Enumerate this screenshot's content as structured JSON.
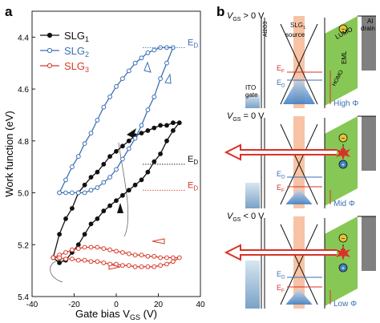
{
  "panel_a": {
    "label": "a",
    "chart_data": {
      "type": "line",
      "xlabel": "Gate bias V",
      "xlabel_sub": "GS",
      "xlabel_unit": "(V)",
      "ylabel": "Work function (eV)",
      "xlim": [
        -40,
        40
      ],
      "ylim": [
        5.4,
        4.3
      ],
      "y_inverted": true,
      "xticks": [
        -40,
        -20,
        0,
        20,
        40
      ],
      "yticks": [
        4.4,
        4.6,
        4.8,
        5.0,
        5.2,
        5.4
      ],
      "xtick_labels": [
        "-40",
        "-20",
        "0",
        "20",
        "40"
      ],
      "ytick_labels": [
        "4.4",
        "4.6",
        "4.8",
        "5.0",
        "5.2",
        "5.4"
      ],
      "grid": false,
      "legend_position": "top-left",
      "series": [
        {
          "name": "SLG",
          "sub": "1",
          "color": "#111111",
          "marker": "filled-circle",
          "x": [
            -30,
            -27,
            -24,
            -21,
            -18,
            -15,
            -12,
            -9,
            -6,
            -3,
            0,
            3,
            6,
            9,
            12,
            15,
            18,
            21,
            24,
            27,
            30,
            27,
            24,
            21,
            18,
            15,
            12,
            9,
            6,
            3,
            0,
            -3,
            -6,
            -9,
            -12,
            -15,
            -18,
            -21,
            -24,
            -27,
            -30
          ],
          "y": [
            5.25,
            5.16,
            5.1,
            5.06,
            5.0,
            4.97,
            4.94,
            4.92,
            4.89,
            4.86,
            4.84,
            4.82,
            4.8,
            4.78,
            4.77,
            4.76,
            4.75,
            4.74,
            4.74,
            4.73,
            4.73,
            4.76,
            4.8,
            4.85,
            4.88,
            4.92,
            4.95,
            4.97,
            4.99,
            5.01,
            5.03,
            5.05,
            5.07,
            5.1,
            5.12,
            5.16,
            5.2,
            5.23,
            5.26,
            5.27,
            5.25
          ]
        },
        {
          "name": "SLG",
          "sub": "2",
          "color": "#3a6fb5",
          "marker": "open-circle",
          "x": [
            -27,
            -24,
            -21,
            -18,
            -15,
            -12,
            -9,
            -6,
            -3,
            0,
            3,
            6,
            9,
            12,
            15,
            18,
            21,
            24,
            27,
            24,
            21,
            18,
            15,
            12,
            9,
            6,
            3,
            0,
            -3,
            -6,
            -9,
            -12,
            -15,
            -18,
            -21,
            -24,
            -27
          ],
          "y": [
            5.0,
            4.95,
            4.9,
            4.86,
            4.81,
            4.77,
            4.72,
            4.67,
            4.63,
            4.59,
            4.56,
            4.53,
            4.5,
            4.48,
            4.46,
            4.45,
            4.44,
            4.44,
            4.44,
            4.5,
            4.56,
            4.63,
            4.68,
            4.74,
            4.79,
            4.83,
            4.87,
            4.91,
            4.94,
            4.96,
            4.98,
            4.99,
            5.0,
            5.0,
            5.0,
            5.0,
            5.0
          ]
        },
        {
          "name": "SLG",
          "sub": "3",
          "color": "#d83a2a",
          "marker": "open-circle",
          "x": [
            -30,
            -27,
            -24,
            -21,
            -18,
            -15,
            -12,
            -9,
            -6,
            -3,
            0,
            3,
            6,
            9,
            12,
            15,
            18,
            21,
            24,
            27,
            30,
            27,
            24,
            21,
            18,
            15,
            12,
            9,
            6,
            3,
            0,
            -3,
            -6,
            -9,
            -12,
            -15,
            -18,
            -21,
            -24,
            -27,
            -30
          ],
          "y": [
            5.25,
            5.24,
            5.23,
            5.22,
            5.215,
            5.21,
            5.21,
            5.21,
            5.215,
            5.22,
            5.225,
            5.23,
            5.235,
            5.24,
            5.24,
            5.245,
            5.245,
            5.25,
            5.25,
            5.25,
            5.25,
            5.265,
            5.275,
            5.28,
            5.285,
            5.285,
            5.285,
            5.285,
            5.28,
            5.28,
            5.275,
            5.275,
            5.27,
            5.265,
            5.265,
            5.26,
            5.26,
            5.255,
            5.255,
            5.25,
            5.25
          ]
        }
      ],
      "annotations": [
        {
          "label": "E",
          "sub": "D",
          "color": "#3a6fb5",
          "y": 4.44
        },
        {
          "label": "E",
          "sub": "D",
          "color": "#111111",
          "y": 4.89
        },
        {
          "label": "E",
          "sub": "D",
          "color": "#d83a2a",
          "y": 4.99
        }
      ]
    }
  },
  "panel_b": {
    "label": "b",
    "layer_labels": {
      "al2o3": "Al2O3",
      "slg1": "SLG1",
      "source": "source",
      "lumo": "LUMO",
      "homo": "HOMO",
      "eml": "EML",
      "al": "Al",
      "drain": "drain",
      "ito": "ITO",
      "gate": "gate"
    },
    "diagrams": [
      {
        "condition": "V",
        "sub": "GS",
        "relation": " > 0 V",
        "phi_label": "High Φ",
        "ef": "E",
        "ef_sub": "F",
        "ed": "E",
        "ed_sub": "D",
        "ef_offset": 0.0,
        "ed_offset": 1.0
      },
      {
        "condition": "V",
        "sub": "GS",
        "relation": " = 0 V",
        "phi_label": "Mid Φ",
        "ef": "E",
        "ef_sub": "F",
        "ed": "E",
        "ed_sub": "D",
        "ef_offset": 1.0,
        "ed_offset": 0.0
      },
      {
        "condition": "V",
        "sub": "GS",
        "relation": " < 0 V",
        "phi_label": "Low Φ",
        "ef": "E",
        "ef_sub": "F",
        "ed": "E",
        "ed_sub": "D",
        "ef_offset": 1.0,
        "ed_offset": 0.0
      }
    ],
    "colors": {
      "gate_blue": "#8fb2cf",
      "al2o3_orange": "#f6b894",
      "eml_green": "#7ac143",
      "arrow_red": "#d9312a",
      "electron": "#e2c63a",
      "hole": "#3d7fc0",
      "metal_gray": "#808080"
    }
  }
}
